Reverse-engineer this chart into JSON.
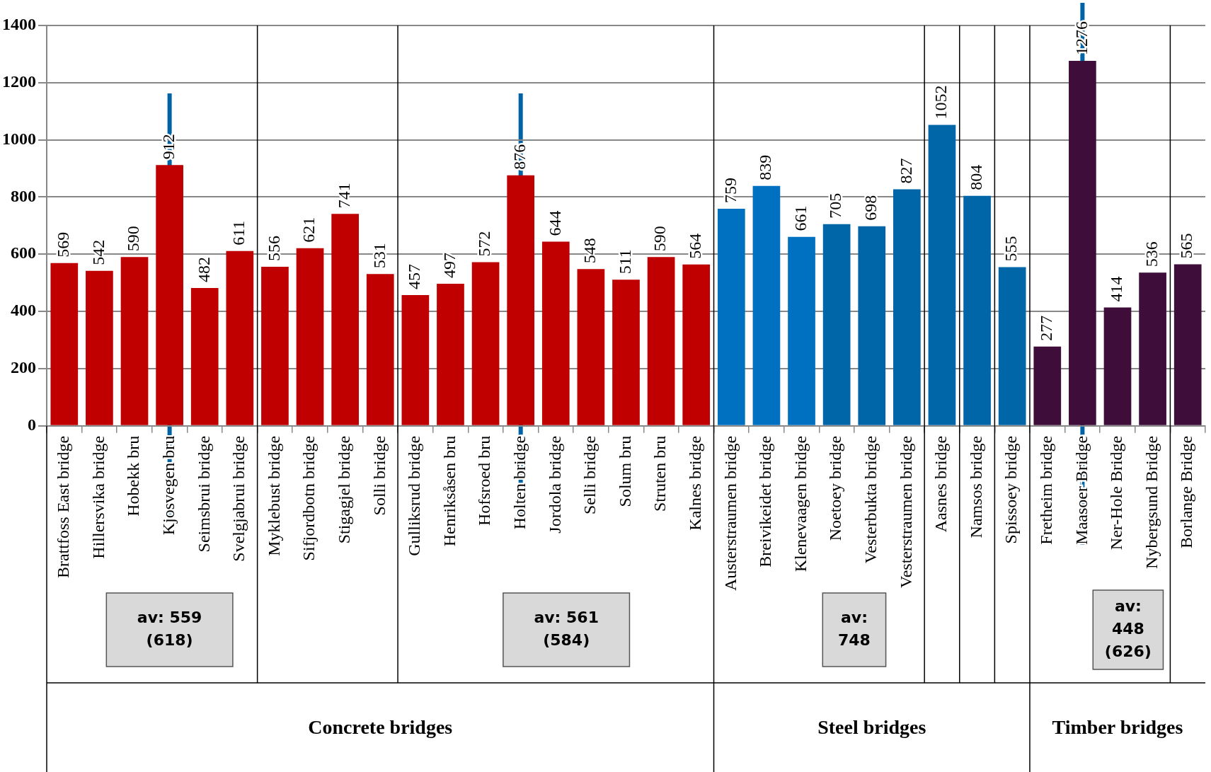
{
  "chart_data": {
    "type": "bar",
    "categories": [
      "Brattfoss East bridge",
      "Hillersvika bridge",
      "Hobekk bru",
      "Kjosvegen bru",
      "Seimsbrui bridge",
      "Svelgjabrui bridge",
      "Myklebust bridge",
      "Sifjordbotn bridge",
      "Stigagjel bridge",
      "Solli bridge",
      "Gulliksrud bridge",
      "Henriksåsen bru",
      "Hofsroed bru",
      "Holten bridge",
      "Jordola bridge",
      "Selli bridge",
      "Solum bru",
      "Struten bru",
      "Kalnes bridge",
      "Austerstraumen bridge",
      "Breivikeidet bridge",
      "Klenevaagen bridge",
      "Noetoey bridge",
      "Vesterbukta bridge",
      "Vesterstraumen bridge",
      "Aasnes bridge",
      "Namsos bridge",
      "Spissoey bridge",
      "Fretheim bridge",
      "Maasoer Bridge",
      "Ner-Hole Bridge",
      "Nybergsund Bridge",
      "Borlange Bridge"
    ],
    "values": [
      569,
      542,
      590,
      912,
      482,
      611,
      556,
      621,
      741,
      531,
      457,
      497,
      572,
      876,
      644,
      548,
      511,
      590,
      564,
      759,
      839,
      661,
      705,
      698,
      827,
      1052,
      804,
      555,
      277,
      1276,
      414,
      536,
      565
    ],
    "colors": [
      "#c00000",
      "#c00000",
      "#c00000",
      "#c00000",
      "#c00000",
      "#c00000",
      "#c00000",
      "#c00000",
      "#c00000",
      "#c00000",
      "#c00000",
      "#c00000",
      "#c00000",
      "#c00000",
      "#c00000",
      "#c00000",
      "#c00000",
      "#c00000",
      "#c00000",
      "#0070c0",
      "#0070c0",
      "#0070c0",
      "#0066a8",
      "#0066a8",
      "#0066a8",
      "#0066a8",
      "#0066a8",
      "#0066a8",
      "#3f0d3a",
      "#3f0d3a",
      "#3f0d3a",
      "#3f0d3a",
      "#3f0d3a"
    ],
    "ylim": [
      0,
      1400
    ],
    "yticks": [
      0,
      200,
      400,
      600,
      800,
      1000,
      1200,
      1400
    ],
    "grid": "y",
    "data_labels": true,
    "ref_lines": [
      {
        "axis": "x",
        "value": "Kjosvegen bru",
        "color": "#0063a6"
      },
      {
        "axis": "x",
        "value": "Holten bridge",
        "color": "#0063a6"
      },
      {
        "axis": "x",
        "value": "Maasoer Bridge",
        "color": "#0063a6"
      }
    ],
    "annotations": [
      "av: 559 (618)",
      "av: 561 (584)",
      "av: 748",
      "av: 448 (626)",
      "Concrete bridges",
      "Steel bridges",
      "Timber bridges"
    ]
  }
}
